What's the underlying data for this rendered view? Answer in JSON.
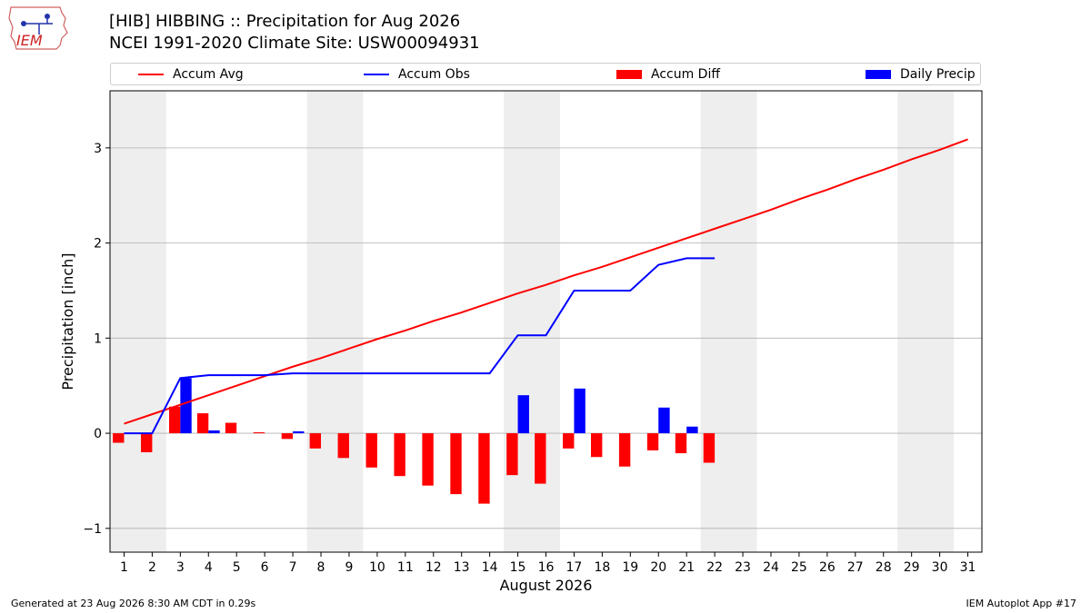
{
  "title_line1": "[HIB] HIBBING :: Precipitation for Aug 2026",
  "title_line2": "NCEI 1991-2020 Climate Site: USW00094931",
  "logo_text": "IEM",
  "footer_left": "Generated at 23 Aug 2026 8:30 AM CDT in 0.29s",
  "footer_right": "IEM Autoplot App #17",
  "colors": {
    "accum_avg": "#ff0000",
    "accum_obs": "#0000ff",
    "accum_diff": "#ff0000",
    "daily_precip": "#0000ff",
    "weekend_shade": "#eeeeee",
    "grid": "#b0b0b0"
  },
  "chart_data": {
    "type": "bar",
    "xlabel": "August 2026",
    "ylabel": "Precipitation [inch]",
    "ylim": [
      -1.25,
      3.6
    ],
    "xlim": [
      0.5,
      31.5
    ],
    "yticks": [
      -1,
      0,
      1,
      2,
      3
    ],
    "ytick_labels": [
      "−1",
      "0",
      "1",
      "2",
      "3"
    ],
    "grid": "horizontal",
    "legend_position": "top",
    "days": [
      1,
      2,
      3,
      4,
      5,
      6,
      7,
      8,
      9,
      10,
      11,
      12,
      13,
      14,
      15,
      16,
      17,
      18,
      19,
      20,
      21,
      22,
      23,
      24,
      25,
      26,
      27,
      28,
      29,
      30,
      31
    ],
    "shaded_day_ranges": [
      [
        1,
        2
      ],
      [
        8,
        9
      ],
      [
        15,
        16
      ],
      [
        22,
        23
      ],
      [
        29,
        30
      ]
    ],
    "legend": [
      "Accum Avg",
      "Accum Obs",
      "Accum Diff",
      "Daily Precip"
    ],
    "series": [
      {
        "name": "Accum Avg",
        "kind": "line",
        "x": [
          1,
          2,
          3,
          4,
          5,
          6,
          7,
          8,
          9,
          10,
          11,
          12,
          13,
          14,
          15,
          16,
          17,
          18,
          19,
          20,
          21,
          22,
          23,
          24,
          25,
          26,
          27,
          28,
          29,
          30,
          31
        ],
        "values": [
          0.1,
          0.2,
          0.3,
          0.4,
          0.5,
          0.6,
          0.7,
          0.79,
          0.89,
          0.99,
          1.08,
          1.18,
          1.27,
          1.37,
          1.47,
          1.56,
          1.66,
          1.75,
          1.85,
          1.95,
          2.05,
          2.15,
          2.25,
          2.35,
          2.46,
          2.56,
          2.67,
          2.77,
          2.88,
          2.98,
          3.09
        ]
      },
      {
        "name": "Accum Obs",
        "kind": "line",
        "x": [
          1,
          2,
          3,
          4,
          5,
          6,
          7,
          8,
          9,
          10,
          11,
          12,
          13,
          14,
          15,
          16,
          17,
          18,
          19,
          20,
          21,
          22
        ],
        "values": [
          0.0,
          0.0,
          0.58,
          0.61,
          0.61,
          0.61,
          0.63,
          0.63,
          0.63,
          0.63,
          0.63,
          0.63,
          0.63,
          0.63,
          1.03,
          1.03,
          1.5,
          1.5,
          1.5,
          1.77,
          1.84,
          1.84
        ]
      },
      {
        "name": "Accum Diff",
        "kind": "bar",
        "x": [
          1,
          2,
          3,
          4,
          5,
          6,
          7,
          8,
          9,
          10,
          11,
          12,
          13,
          14,
          15,
          16,
          17,
          18,
          19,
          20,
          21,
          22
        ],
        "values": [
          -0.1,
          -0.2,
          0.28,
          0.21,
          0.11,
          0.01,
          -0.06,
          -0.16,
          -0.26,
          -0.36,
          -0.45,
          -0.55,
          -0.64,
          -0.74,
          -0.44,
          -0.53,
          -0.16,
          -0.25,
          -0.35,
          -0.18,
          -0.21,
          -0.31
        ]
      },
      {
        "name": "Daily Precip",
        "kind": "bar",
        "x": [
          1,
          2,
          3,
          4,
          5,
          6,
          7,
          8,
          9,
          10,
          11,
          12,
          13,
          14,
          15,
          16,
          17,
          18,
          19,
          20,
          21,
          22
        ],
        "values": [
          0,
          0,
          0.58,
          0.03,
          0,
          0,
          0.02,
          0,
          0,
          0,
          0,
          0,
          0,
          0,
          0.4,
          0,
          0.47,
          0,
          0,
          0.27,
          0.07,
          0
        ]
      }
    ]
  }
}
